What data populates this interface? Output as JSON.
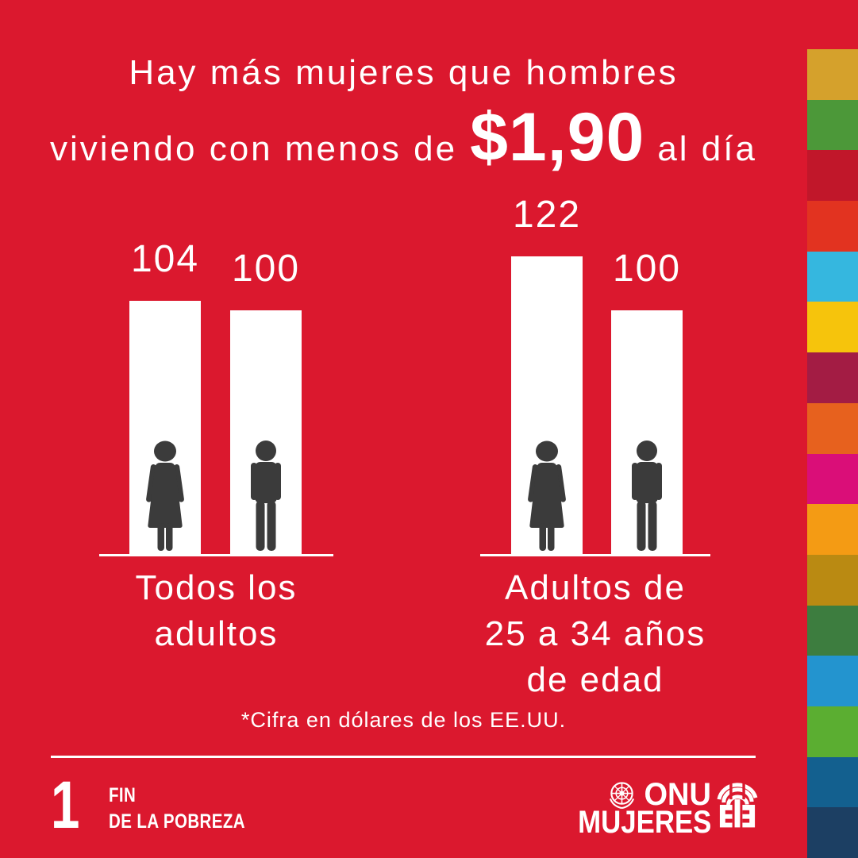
{
  "colors": {
    "bg": "#DB182E",
    "bar": "#FFFFFF",
    "figure": "#3B3B3B",
    "ink": "#FFFFFF"
  },
  "title": {
    "line1": "Hay más mujeres que hombres",
    "line2_prefix": "viviendo con menos de",
    "line2_amount": "$1,90",
    "line2_suffix": "al día"
  },
  "chart_data": {
    "type": "bar",
    "categories": [
      "Todos los adultos",
      "Adultos de 25 a 34 años de edad"
    ],
    "series": [
      {
        "name": "mujeres",
        "figure": "woman",
        "values": [
          104,
          122
        ]
      },
      {
        "name": "hombres",
        "figure": "man",
        "values": [
          100,
          100
        ]
      }
    ],
    "groups": [
      {
        "label_lines": [
          "Todos los",
          "adultos"
        ],
        "bars": [
          {
            "value": 104,
            "figure": "woman"
          },
          {
            "value": 100,
            "figure": "man"
          }
        ]
      },
      {
        "label_lines": [
          "Adultos de",
          "25 a 34 años",
          "de edad"
        ],
        "bars": [
          {
            "value": 122,
            "figure": "woman"
          },
          {
            "value": 100,
            "figure": "man"
          }
        ]
      }
    ],
    "ylim": [
      0,
      130
    ],
    "grid": false,
    "legend": false,
    "bar_color": "#FFFFFF",
    "figure_color": "#3B3B3B"
  },
  "footnote": "*Cifra en dólares de los EE.UU.",
  "sdg_logo": {
    "number": "1",
    "line1": "FIN",
    "line2": "DE LA POBREZA"
  },
  "unwomen_logo": {
    "line1": "ONU",
    "line2": "MUJERES"
  },
  "sdg_strip": {
    "colors": [
      "#D5A12C",
      "#4C9839",
      "#C1172A",
      "#E23320",
      "#35B7DF",
      "#F6C40C",
      "#A31C44",
      "#E7611E",
      "#DA0E78",
      "#F49B14",
      "#BA8A12",
      "#3D7D3F",
      "#2394CF",
      "#5BAE31",
      "#13608F",
      "#1C3F63"
    ]
  }
}
